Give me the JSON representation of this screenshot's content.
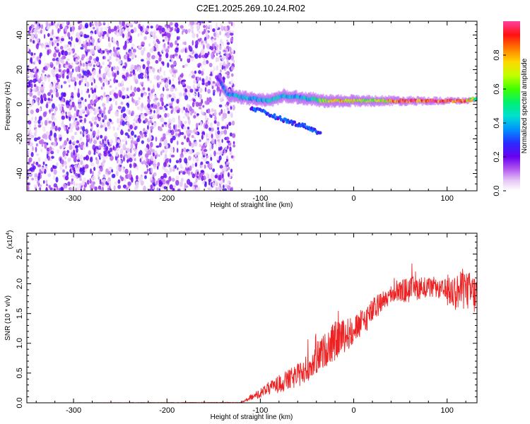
{
  "title": "C2E1.2025.269.10.24.R02",
  "colors": {
    "snr_line": "#ee2222",
    "spectrogram_dots": "#7a2fe0",
    "axis": "#000000",
    "background": "#ffffff"
  },
  "chart_data": [
    {
      "type": "heatmap",
      "name": "spectrogram",
      "xlabel": "Height of straight line (km)",
      "ylabel": "Frequency (Hz)",
      "xlim": [
        -350,
        132
      ],
      "ylim": [
        -50,
        48
      ],
      "x_ticks": [
        -300,
        -200,
        -100,
        0,
        100
      ],
      "x_tick_labels": [
        "-300",
        "-200",
        "-100",
        "0",
        "100"
      ],
      "y_ticks": [
        -40,
        -20,
        0,
        20,
        40
      ],
      "y_tick_labels": [
        "-40",
        "-20",
        "0",
        "20",
        "40"
      ],
      "noise_region_x": [
        -350,
        -132
      ],
      "signal_track": [
        {
          "x": -145,
          "y": 15,
          "amp": 0.25
        },
        {
          "x": -135,
          "y": 6,
          "amp": 0.4
        },
        {
          "x": -120,
          "y": 4,
          "amp": 0.45
        },
        {
          "x": -105,
          "y": 3,
          "amp": 0.4
        },
        {
          "x": -90,
          "y": 2,
          "amp": 0.5
        },
        {
          "x": -75,
          "y": 5,
          "amp": 0.45
        },
        {
          "x": -60,
          "y": 4,
          "amp": 0.4
        },
        {
          "x": -45,
          "y": 3,
          "amp": 0.45
        },
        {
          "x": -30,
          "y": 2,
          "amp": 0.7
        },
        {
          "x": -15,
          "y": 2,
          "amp": 0.8
        },
        {
          "x": 0,
          "y": 2,
          "amp": 0.75
        },
        {
          "x": 15,
          "y": 2,
          "amp": 0.65
        },
        {
          "x": 30,
          "y": 2,
          "amp": 0.7
        },
        {
          "x": 45,
          "y": 2,
          "amp": 0.9
        },
        {
          "x": 60,
          "y": 2,
          "amp": 0.95
        },
        {
          "x": 75,
          "y": 2,
          "amp": 0.95
        },
        {
          "x": 90,
          "y": 2,
          "amp": 0.95
        },
        {
          "x": 105,
          "y": 2,
          "amp": 0.95
        },
        {
          "x": 120,
          "y": 2,
          "amp": 0.9
        },
        {
          "x": 130,
          "y": 3,
          "amp": 0.6
        }
      ],
      "secondary_track": [
        {
          "x": -110,
          "y": -2
        },
        {
          "x": -90,
          "y": -6
        },
        {
          "x": -70,
          "y": -10
        },
        {
          "x": -50,
          "y": -13
        },
        {
          "x": -35,
          "y": -17
        }
      ],
      "colorbar": {
        "label": "Normalized spectral amplitude",
        "range": [
          0,
          1
        ],
        "ticks": [
          0.0,
          0.2,
          0.4,
          0.6,
          0.8
        ],
        "tick_labels": [
          "0.0",
          "0.2",
          "0.4",
          "0.6",
          "0.8"
        ]
      }
    },
    {
      "type": "line",
      "name": "snr",
      "xlabel": "Height of straight line (km)",
      "ylabel": "SNR (10 * v/v)",
      "scale_label": "(x10",
      "scale_exp": "4",
      "scale_close": ")",
      "xlim": [
        -350,
        132
      ],
      "ylim": [
        0,
        28500
      ],
      "x_ticks": [
        -300,
        -200,
        -100,
        0,
        100
      ],
      "x_tick_labels": [
        "-300",
        "-200",
        "-100",
        "0",
        "100"
      ],
      "y_ticks": [
        0,
        5000,
        10000,
        15000,
        20000,
        25000
      ],
      "y_tick_labels": [
        "0.0",
        "0.5",
        "1.0",
        "1.5",
        "2.0",
        "2.5"
      ],
      "envelope": [
        {
          "x": -350,
          "y": 0
        },
        {
          "x": -120,
          "y": 50
        },
        {
          "x": -105,
          "y": 1200
        },
        {
          "x": -90,
          "y": 2500
        },
        {
          "x": -75,
          "y": 3500
        },
        {
          "x": -60,
          "y": 4500
        },
        {
          "x": -45,
          "y": 6500
        },
        {
          "x": -30,
          "y": 9000
        },
        {
          "x": -15,
          "y": 11000
        },
        {
          "x": 0,
          "y": 12000
        },
        {
          "x": 15,
          "y": 14500
        },
        {
          "x": 30,
          "y": 17000
        },
        {
          "x": 45,
          "y": 18500
        },
        {
          "x": 60,
          "y": 19000
        },
        {
          "x": 75,
          "y": 19500
        },
        {
          "x": 90,
          "y": 19000
        },
        {
          "x": 105,
          "y": 18500
        },
        {
          "x": 120,
          "y": 19000
        },
        {
          "x": 132,
          "y": 18000
        }
      ],
      "spread": [
        {
          "x": -350,
          "y": 0
        },
        {
          "x": -120,
          "y": 50
        },
        {
          "x": -100,
          "y": 800
        },
        {
          "x": -80,
          "y": 1500
        },
        {
          "x": -60,
          "y": 2000
        },
        {
          "x": -40,
          "y": 2600
        },
        {
          "x": -20,
          "y": 3300
        },
        {
          "x": 0,
          "y": 2500
        },
        {
          "x": 20,
          "y": 2200
        },
        {
          "x": 40,
          "y": 1300
        },
        {
          "x": 55,
          "y": 2200
        },
        {
          "x": 70,
          "y": 2000
        },
        {
          "x": 90,
          "y": 1400
        },
        {
          "x": 110,
          "y": 3200
        },
        {
          "x": 132,
          "y": 3500
        }
      ]
    }
  ]
}
